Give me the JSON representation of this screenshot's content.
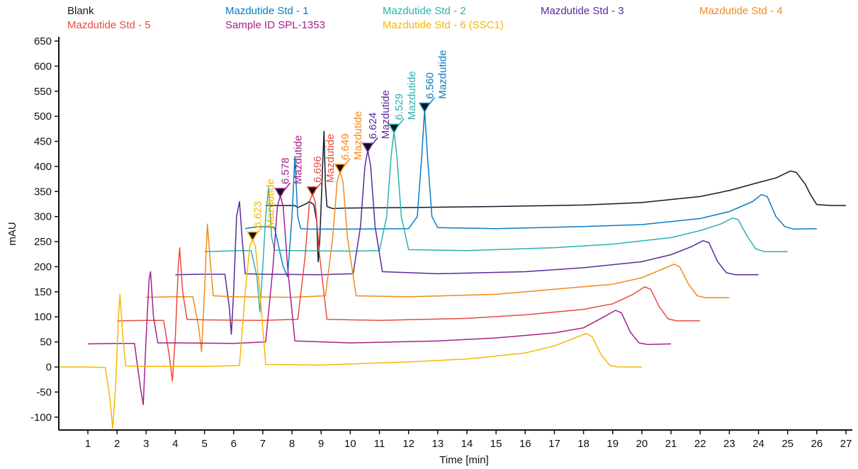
{
  "chart_data": {
    "type": "line",
    "title": "",
    "xlabel": "Time [min]",
    "ylabel": "mAU",
    "xlim": [
      0,
      27.3
    ],
    "ylim": [
      -120,
      660
    ],
    "x_ticks": [
      1,
      2,
      3,
      4,
      5,
      6,
      7,
      8,
      9,
      10,
      11,
      12,
      13,
      14,
      15,
      16,
      17,
      18,
      19,
      20,
      21,
      22,
      23,
      24,
      25,
      26,
      27
    ],
    "y_ticks": [
      -100,
      -50,
      0,
      50,
      100,
      150,
      200,
      250,
      300,
      350,
      400,
      450,
      500,
      550,
      600,
      650
    ],
    "grid": false,
    "legend_position": "top",
    "series": [
      {
        "name": "Blank",
        "color": "#0d1b2a",
        "baseline": 322,
        "x_offset": 2.5,
        "peak": null,
        "points": [
          [
            7.1,
            322
          ],
          [
            7.6,
            322
          ],
          [
            8.1,
            322
          ],
          [
            8.2,
            318
          ],
          [
            8.5,
            326
          ],
          [
            8.6,
            330
          ],
          [
            8.75,
            324
          ],
          [
            8.85,
            290
          ],
          [
            8.9,
            210
          ],
          [
            8.95,
            250
          ],
          [
            9.0,
            320
          ],
          [
            9.05,
            400
          ],
          [
            9.1,
            470
          ],
          [
            9.15,
            360
          ],
          [
            9.2,
            320
          ],
          [
            9.4,
            316
          ],
          [
            9.8,
            317
          ],
          [
            12,
            318
          ],
          [
            15,
            320
          ],
          [
            18,
            323
          ],
          [
            20,
            328
          ],
          [
            22,
            340
          ],
          [
            23,
            352
          ],
          [
            24,
            368
          ],
          [
            24.6,
            377
          ],
          [
            25.1,
            391
          ],
          [
            25.3,
            388
          ],
          [
            25.6,
            365
          ],
          [
            25.8,
            342
          ],
          [
            26,
            324
          ],
          [
            26.5,
            322
          ],
          [
            27.0,
            322
          ]
        ]
      },
      {
        "name": "Mazdutide Std - 1",
        "color": "#0b7bc1",
        "baseline": 275,
        "x_offset": 2.0,
        "peak": {
          "rt": "6.560",
          "label": "Mazdutide",
          "x": 12.55,
          "y": 512
        },
        "points": [
          [
            6.4,
            276
          ],
          [
            6.6,
            278
          ],
          [
            7.0,
            280
          ],
          [
            7.4,
            278
          ],
          [
            7.7,
            200
          ],
          [
            7.85,
            180
          ],
          [
            8.0,
            300
          ],
          [
            8.1,
            420
          ],
          [
            8.2,
            300
          ],
          [
            8.3,
            276
          ],
          [
            8.6,
            275
          ],
          [
            10,
            275
          ],
          [
            12.0,
            276
          ],
          [
            12.3,
            300
          ],
          [
            12.45,
            420
          ],
          [
            12.55,
            512
          ],
          [
            12.65,
            420
          ],
          [
            12.8,
            300
          ],
          [
            13.0,
            278
          ],
          [
            15,
            276
          ],
          [
            18,
            280
          ],
          [
            20,
            284
          ],
          [
            22,
            296
          ],
          [
            23,
            310
          ],
          [
            23.8,
            330
          ],
          [
            24.1,
            344
          ],
          [
            24.3,
            340
          ],
          [
            24.6,
            300
          ],
          [
            24.9,
            280
          ],
          [
            25.2,
            275
          ],
          [
            26,
            276
          ]
        ]
      },
      {
        "name": "Mazdutide Std - 2",
        "color": "#2ab3b0",
        "baseline": 230,
        "x_offset": 1.5,
        "peak": {
          "rt": "6.529",
          "label": "Mazdutide",
          "x": 11.5,
          "y": 470
        },
        "points": [
          [
            5.0,
            230
          ],
          [
            5.6,
            231
          ],
          [
            6.2,
            232
          ],
          [
            6.6,
            232
          ],
          [
            6.8,
            180
          ],
          [
            6.9,
            110
          ],
          [
            7.0,
            200
          ],
          [
            7.1,
            300
          ],
          [
            7.2,
            360
          ],
          [
            7.3,
            260
          ],
          [
            7.4,
            233
          ],
          [
            8.0,
            232
          ],
          [
            10,
            231
          ],
          [
            11.0,
            232
          ],
          [
            11.25,
            300
          ],
          [
            11.4,
            420
          ],
          [
            11.5,
            470
          ],
          [
            11.6,
            420
          ],
          [
            11.75,
            300
          ],
          [
            12.0,
            234
          ],
          [
            14,
            232
          ],
          [
            17,
            238
          ],
          [
            19,
            245
          ],
          [
            21,
            258
          ],
          [
            22,
            272
          ],
          [
            22.7,
            285
          ],
          [
            23.1,
            297
          ],
          [
            23.3,
            294
          ],
          [
            23.6,
            262
          ],
          [
            23.9,
            236
          ],
          [
            24.2,
            230
          ],
          [
            25,
            230
          ]
        ]
      },
      {
        "name": "Mazdutide Std - 3",
        "color": "#5b2a9c",
        "baseline": 184,
        "x_offset": 1.0,
        "peak": {
          "rt": "6.624",
          "label": "Mazdutide",
          "x": 10.6,
          "y": 432
        },
        "points": [
          [
            4.0,
            184
          ],
          [
            4.8,
            185
          ],
          [
            5.4,
            185
          ],
          [
            5.7,
            185
          ],
          [
            5.85,
            120
          ],
          [
            5.92,
            65
          ],
          [
            6.0,
            150
          ],
          [
            6.1,
            300
          ],
          [
            6.2,
            330
          ],
          [
            6.3,
            250
          ],
          [
            6.4,
            186
          ],
          [
            7.0,
            185
          ],
          [
            9,
            184
          ],
          [
            10.1,
            186
          ],
          [
            10.35,
            280
          ],
          [
            10.5,
            400
          ],
          [
            10.6,
            432
          ],
          [
            10.7,
            400
          ],
          [
            10.85,
            280
          ],
          [
            11.1,
            190
          ],
          [
            13,
            186
          ],
          [
            16,
            190
          ],
          [
            18,
            198
          ],
          [
            20,
            210
          ],
          [
            21,
            224
          ],
          [
            21.7,
            240
          ],
          [
            22.1,
            252
          ],
          [
            22.3,
            248
          ],
          [
            22.6,
            210
          ],
          [
            22.9,
            188
          ],
          [
            23.2,
            184
          ],
          [
            24,
            184
          ]
        ]
      },
      {
        "name": "Mazdutide Std - 4",
        "color": "#f08a1c",
        "baseline": 138,
        "x_offset": 0.5,
        "peak": {
          "rt": "6.649",
          "label": "Mazdutide",
          "x": 9.65,
          "y": 390
        },
        "points": [
          [
            3.0,
            139
          ],
          [
            4.0,
            140
          ],
          [
            4.6,
            140
          ],
          [
            4.8,
            80
          ],
          [
            4.9,
            30
          ],
          [
            5.0,
            150
          ],
          [
            5.1,
            285
          ],
          [
            5.2,
            210
          ],
          [
            5.3,
            142
          ],
          [
            6.0,
            140
          ],
          [
            8,
            139
          ],
          [
            9.15,
            142
          ],
          [
            9.4,
            260
          ],
          [
            9.55,
            370
          ],
          [
            9.65,
            390
          ],
          [
            9.75,
            370
          ],
          [
            9.9,
            260
          ],
          [
            10.2,
            142
          ],
          [
            12,
            140
          ],
          [
            15,
            145
          ],
          [
            17,
            155
          ],
          [
            19,
            165
          ],
          [
            20,
            178
          ],
          [
            20.7,
            195
          ],
          [
            21.1,
            205
          ],
          [
            21.3,
            200
          ],
          [
            21.6,
            165
          ],
          [
            21.9,
            142
          ],
          [
            22.2,
            138
          ],
          [
            23,
            138
          ]
        ]
      },
      {
        "name": "Mazdutide Std - 5",
        "color": "#ea4b3c",
        "baseline": 92,
        "x_offset": 0.0,
        "peak": {
          "rt": "6.696",
          "label": "Mazdutide",
          "x": 8.7,
          "y": 345
        },
        "points": [
          [
            2.0,
            92
          ],
          [
            3.0,
            93
          ],
          [
            3.6,
            93
          ],
          [
            3.8,
            20
          ],
          [
            3.9,
            -28
          ],
          [
            4.0,
            60
          ],
          [
            4.1,
            200
          ],
          [
            4.15,
            238
          ],
          [
            4.25,
            150
          ],
          [
            4.4,
            95
          ],
          [
            5.0,
            94
          ],
          [
            7,
            93
          ],
          [
            8.2,
            95
          ],
          [
            8.45,
            220
          ],
          [
            8.6,
            330
          ],
          [
            8.7,
            345
          ],
          [
            8.8,
            330
          ],
          [
            8.95,
            220
          ],
          [
            9.2,
            95
          ],
          [
            11,
            93
          ],
          [
            14,
            97
          ],
          [
            16,
            104
          ],
          [
            18,
            115
          ],
          [
            19,
            126
          ],
          [
            19.7,
            145
          ],
          [
            20.1,
            160
          ],
          [
            20.3,
            155
          ],
          [
            20.6,
            120
          ],
          [
            20.9,
            96
          ],
          [
            21.2,
            92
          ],
          [
            22,
            92
          ]
        ]
      },
      {
        "name": "Sample ID SPL-1353",
        "color": "#a3218a",
        "baseline": 46,
        "x_offset": -0.5,
        "peak": {
          "rt": "6.578",
          "label": "Mazdutide",
          "x": 7.6,
          "y": 342
        },
        "points": [
          [
            1.0,
            46
          ],
          [
            2.0,
            47
          ],
          [
            2.6,
            47
          ],
          [
            2.8,
            -40
          ],
          [
            2.9,
            -75
          ],
          [
            3.0,
            60
          ],
          [
            3.1,
            175
          ],
          [
            3.15,
            190
          ],
          [
            3.25,
            100
          ],
          [
            3.4,
            48
          ],
          [
            4.0,
            48
          ],
          [
            6,
            47
          ],
          [
            7.1,
            50
          ],
          [
            7.35,
            200
          ],
          [
            7.5,
            320
          ],
          [
            7.6,
            342
          ],
          [
            7.7,
            320
          ],
          [
            7.85,
            200
          ],
          [
            8.1,
            52
          ],
          [
            10,
            48
          ],
          [
            13,
            52
          ],
          [
            15,
            58
          ],
          [
            17,
            68
          ],
          [
            18,
            78
          ],
          [
            18.7,
            100
          ],
          [
            19.1,
            113
          ],
          [
            19.3,
            108
          ],
          [
            19.6,
            70
          ],
          [
            19.9,
            48
          ],
          [
            20.2,
            45
          ],
          [
            21,
            46
          ]
        ]
      },
      {
        "name": "Mazdutide Std - 6 (SSC1)",
        "color": "#f7b800",
        "baseline": 0,
        "x_offset": -1.0,
        "peak": {
          "rt": "6.623",
          "label": "Mazdutide",
          "x": 6.65,
          "y": 255
        },
        "points": [
          [
            0.0,
            0
          ],
          [
            1.0,
            0
          ],
          [
            1.6,
            -1
          ],
          [
            1.75,
            -60
          ],
          [
            1.85,
            -122
          ],
          [
            1.95,
            -40
          ],
          [
            2.05,
            100
          ],
          [
            2.1,
            145
          ],
          [
            2.2,
            60
          ],
          [
            2.3,
            2
          ],
          [
            3.0,
            1
          ],
          [
            5,
            1
          ],
          [
            6.2,
            3
          ],
          [
            6.4,
            150
          ],
          [
            6.55,
            240
          ],
          [
            6.65,
            255
          ],
          [
            6.75,
            240
          ],
          [
            6.9,
            150
          ],
          [
            7.1,
            5
          ],
          [
            9,
            4
          ],
          [
            12,
            10
          ],
          [
            14,
            16
          ],
          [
            16,
            28
          ],
          [
            17,
            42
          ],
          [
            17.7,
            58
          ],
          [
            18.1,
            67
          ],
          [
            18.3,
            60
          ],
          [
            18.6,
            25
          ],
          [
            18.9,
            3
          ],
          [
            19.2,
            0
          ],
          [
            20,
            0
          ]
        ]
      }
    ]
  }
}
